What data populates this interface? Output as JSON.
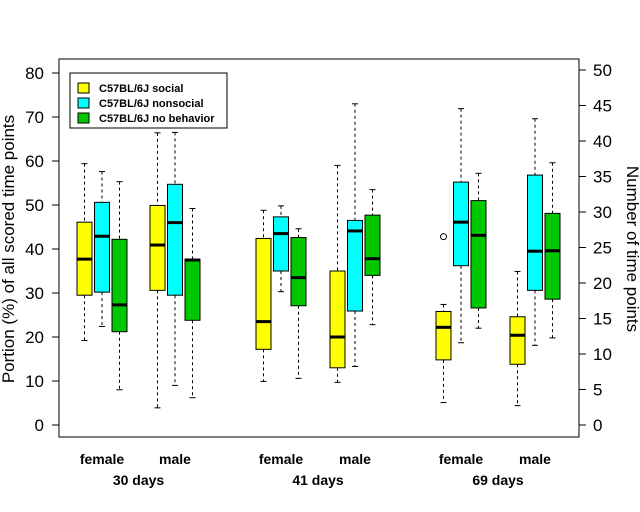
{
  "chart_data": {
    "type": "boxplot",
    "ylabel_left": "Portion (%) of all scored time points",
    "ylabel_right": "Number of time points",
    "ylim_left": [
      0,
      80
    ],
    "yticks_left": [
      0,
      10,
      20,
      30,
      40,
      50,
      60,
      70,
      80
    ],
    "ylim_right": [
      0,
      50
    ],
    "yticks_right": [
      0,
      5,
      10,
      15,
      20,
      25,
      30,
      35,
      40,
      45,
      50
    ],
    "legend_position": "top-left",
    "series": [
      {
        "name": "C57BL/6J social",
        "color": "#ffff00"
      },
      {
        "name": "C57BL/6J nonsocial",
        "color": "#00ffff"
      },
      {
        "name": "C57BL/6J no behavior",
        "color": "#00c800"
      }
    ],
    "groups": [
      {
        "age": "30 days",
        "sexes": [
          {
            "sex": "female",
            "boxes": [
              {
                "series": 0,
                "min": 19.2,
                "q1": 29.5,
                "median": 37.7,
                "q3": 46.1,
                "max": 59.4,
                "outliers": []
              },
              {
                "series": 1,
                "min": 22.4,
                "q1": 30.2,
                "median": 42.9,
                "q3": 50.6,
                "max": 57.6,
                "outliers": []
              },
              {
                "series": 2,
                "min": 8.0,
                "q1": 21.2,
                "median": 27.3,
                "q3": 42.2,
                "max": 55.3,
                "outliers": []
              }
            ]
          },
          {
            "sex": "male",
            "boxes": [
              {
                "series": 0,
                "min": 3.9,
                "q1": 30.6,
                "median": 40.9,
                "q3": 49.9,
                "max": 66.4,
                "outliers": []
              },
              {
                "series": 1,
                "min": 9.0,
                "q1": 29.5,
                "median": 46.0,
                "q3": 54.7,
                "max": 66.5,
                "outliers": []
              },
              {
                "series": 2,
                "min": 6.2,
                "q1": 23.8,
                "median": 37.5,
                "q3": 37.7,
                "max": 49.2,
                "outliers": []
              }
            ]
          }
        ]
      },
      {
        "age": "41 days",
        "sexes": [
          {
            "sex": "female",
            "boxes": [
              {
                "series": 0,
                "min": 9.9,
                "q1": 17.2,
                "median": 23.5,
                "q3": 42.4,
                "max": 48.8,
                "outliers": []
              },
              {
                "series": 1,
                "min": 30.3,
                "q1": 35.0,
                "median": 43.5,
                "q3": 47.3,
                "max": 49.8,
                "outliers": []
              },
              {
                "series": 2,
                "min": 10.6,
                "q1": 27.1,
                "median": 33.5,
                "q3": 42.6,
                "max": 44.6,
                "outliers": []
              }
            ]
          },
          {
            "sex": "male",
            "boxes": [
              {
                "series": 0,
                "min": 9.7,
                "q1": 13.0,
                "median": 20.0,
                "q3": 35.0,
                "max": 59.0,
                "outliers": []
              },
              {
                "series": 1,
                "min": 13.3,
                "q1": 25.9,
                "median": 44.1,
                "q3": 46.5,
                "max": 73.0,
                "outliers": []
              },
              {
                "series": 2,
                "min": 22.8,
                "q1": 34.0,
                "median": 37.8,
                "q3": 47.7,
                "max": 53.5,
                "outliers": []
              }
            ]
          }
        ]
      },
      {
        "age": "69 days",
        "sexes": [
          {
            "sex": "female",
            "boxes": [
              {
                "series": 0,
                "min": 5.1,
                "q1": 14.8,
                "median": 22.2,
                "q3": 25.8,
                "max": 27.4,
                "outliers": [
                  42.8
                ]
              },
              {
                "series": 1,
                "min": 18.7,
                "q1": 36.2,
                "median": 46.1,
                "q3": 55.2,
                "max": 71.9,
                "outliers": []
              },
              {
                "series": 2,
                "min": 22.0,
                "q1": 26.6,
                "median": 43.1,
                "q3": 51.0,
                "max": 57.2,
                "outliers": []
              }
            ]
          },
          {
            "sex": "male",
            "boxes": [
              {
                "series": 0,
                "min": 4.4,
                "q1": 13.8,
                "median": 20.4,
                "q3": 24.6,
                "max": 34.9,
                "outliers": []
              },
              {
                "series": 1,
                "min": 18.1,
                "q1": 30.6,
                "median": 39.5,
                "q3": 56.8,
                "max": 69.6,
                "outliers": []
              },
              {
                "series": 2,
                "min": 19.8,
                "q1": 28.6,
                "median": 39.6,
                "q3": 48.1,
                "max": 59.6,
                "outliers": []
              }
            ]
          }
        ]
      }
    ]
  }
}
